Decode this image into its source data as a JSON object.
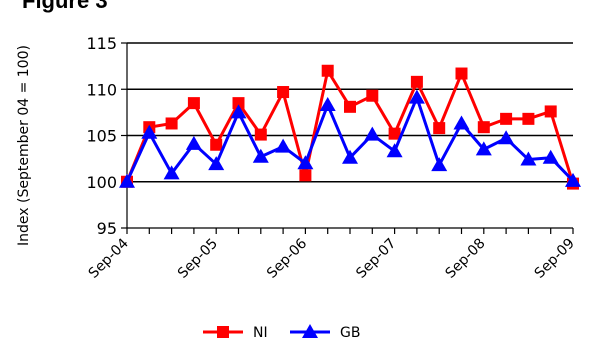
{
  "figure_title": "Figure 3",
  "chart_data": {
    "type": "line",
    "title": "",
    "xlabel": "",
    "ylabel": "Index (September 04 = 100)",
    "ylim": [
      95,
      115
    ],
    "yticks": [
      95,
      100,
      105,
      110,
      115
    ],
    "grid": "horizontal",
    "legend_position": "bottom",
    "x_tick_labels": [
      "Sep-04",
      "Sep-05",
      "Sep-06",
      "Sep-07",
      "Sep-08",
      "Sep-09"
    ],
    "x_tick_every": 4,
    "series": [
      {
        "name": "NI",
        "color": "#ff0000",
        "marker": "square",
        "values": [
          100,
          105.9,
          106.3,
          108.5,
          104,
          108.5,
          105.1,
          109.7,
          100.7,
          112,
          108.1,
          109.3,
          105.2,
          110.8,
          105.8,
          111.7,
          105.9,
          106.8,
          106.8,
          107.6,
          99.8
        ]
      },
      {
        "name": "GB",
        "color": "#0000ff",
        "marker": "triangle",
        "values": [
          100,
          105.3,
          100.9,
          104.1,
          101.9,
          107.5,
          102.7,
          103.8,
          102,
          108.3,
          102.6,
          105.1,
          103.3,
          109.1,
          101.8,
          106.3,
          103.5,
          104.7,
          102.4,
          102.6,
          100.1
        ]
      }
    ]
  }
}
